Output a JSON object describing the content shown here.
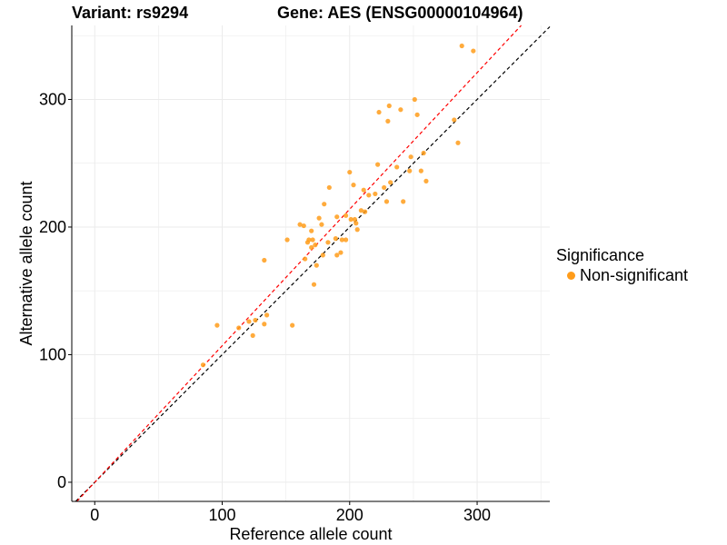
{
  "title_left": "Variant: rs9294",
  "title_right": "Gene: AES (ENSG00000104964)",
  "legend": {
    "title": "Significance",
    "items": [
      {
        "label": "Non-significant",
        "color": "#FF9C1A"
      }
    ]
  },
  "chart_data": {
    "type": "scatter",
    "xlabel": "Reference allele count",
    "ylabel": "Alternative allele count",
    "xlim": [
      -18,
      357
    ],
    "ylim": [
      -15,
      358
    ],
    "xticks": [
      0,
      100,
      200,
      300
    ],
    "yticks": [
      0,
      100,
      200,
      300
    ],
    "grid": true,
    "legend_position": "right",
    "reference_lines": [
      {
        "slope": 1.0,
        "intercept": 0,
        "color": "#000000",
        "style": "dashed"
      },
      {
        "slope": 1.07,
        "intercept": 0,
        "color": "#FF0000",
        "style": "dashed"
      }
    ],
    "series": [
      {
        "name": "Non-significant",
        "color": "#FF9C1A",
        "points": [
          [
            85,
            92
          ],
          [
            96,
            123
          ],
          [
            113,
            121
          ],
          [
            121,
            126
          ],
          [
            124,
            115
          ],
          [
            126,
            127
          ],
          [
            133,
            174
          ],
          [
            133,
            124
          ],
          [
            135,
            131
          ],
          [
            151,
            190
          ],
          [
            155,
            123
          ],
          [
            161,
            202
          ],
          [
            164,
            201
          ],
          [
            165,
            175
          ],
          [
            167,
            188
          ],
          [
            168,
            190
          ],
          [
            170,
            197
          ],
          [
            170,
            184
          ],
          [
            171,
            190
          ],
          [
            172,
            155
          ],
          [
            173,
            186
          ],
          [
            174,
            170
          ],
          [
            176,
            207
          ],
          [
            178,
            202
          ],
          [
            179,
            178
          ],
          [
            180,
            218
          ],
          [
            183,
            188
          ],
          [
            184,
            231
          ],
          [
            189,
            191
          ],
          [
            190,
            208
          ],
          [
            190,
            178
          ],
          [
            193,
            180
          ],
          [
            194,
            190
          ],
          [
            197,
            209
          ],
          [
            197,
            190
          ],
          [
            200,
            243
          ],
          [
            201,
            206
          ],
          [
            203,
            233
          ],
          [
            204,
            206
          ],
          [
            205,
            203
          ],
          [
            206,
            198
          ],
          [
            209,
            213
          ],
          [
            211,
            229
          ],
          [
            212,
            212
          ],
          [
            215,
            225
          ],
          [
            220,
            226
          ],
          [
            222,
            249
          ],
          [
            223,
            290
          ],
          [
            227,
            231
          ],
          [
            229,
            220
          ],
          [
            230,
            283
          ],
          [
            231,
            295
          ],
          [
            232,
            235
          ],
          [
            237,
            247
          ],
          [
            240,
            292
          ],
          [
            242,
            220
          ],
          [
            247,
            244
          ],
          [
            248,
            255
          ],
          [
            251,
            300
          ],
          [
            253,
            288
          ],
          [
            256,
            244
          ],
          [
            258,
            258
          ],
          [
            260,
            236
          ],
          [
            282,
            284
          ],
          [
            285,
            266
          ],
          [
            288,
            342
          ],
          [
            297,
            338
          ]
        ]
      }
    ]
  }
}
